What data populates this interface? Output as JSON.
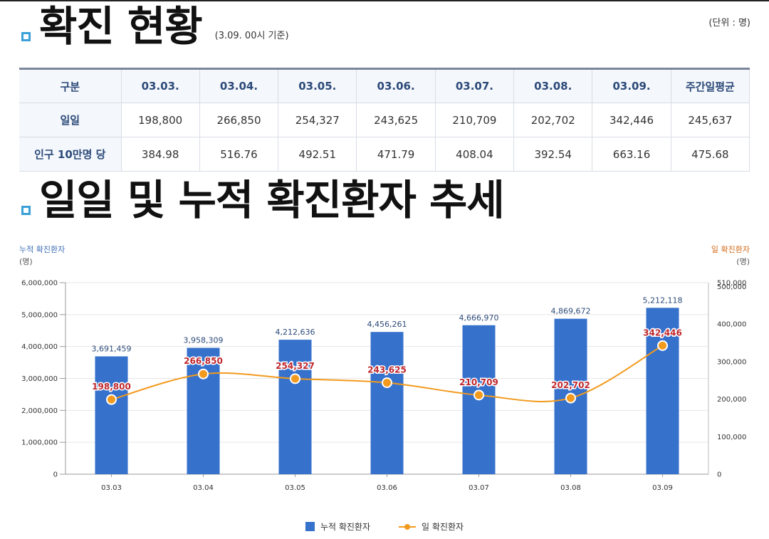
{
  "section1": {
    "title": "확진 현황",
    "subtitle": "(3.09. 00시 기준)",
    "unit": "(단위 : 명)"
  },
  "table": {
    "headers": [
      "구분",
      "03.03.",
      "03.04.",
      "03.05.",
      "03.06.",
      "03.07.",
      "03.08.",
      "03.09.",
      "주간일평균"
    ],
    "rows": [
      {
        "label": "일일",
        "cells": [
          "198,800",
          "266,850",
          "254,327",
          "243,625",
          "210,709",
          "202,702",
          "342,446",
          "245,637"
        ]
      },
      {
        "label": "인구 10만명 당",
        "cells": [
          "384.98",
          "516.76",
          "492.51",
          "471.79",
          "408.04",
          "392.54",
          "663.16",
          "475.68"
        ]
      }
    ]
  },
  "section2": {
    "title": "일일 및 누적 확진환자 추세"
  },
  "axis_titles": {
    "left": "누적 확진환자",
    "left_unit": "(명)",
    "right": "일 확진환자",
    "right_unit": "(명)"
  },
  "legend": {
    "bar": "누적 확진환자",
    "line": "일 확진환자"
  },
  "chart_data": {
    "type": "bar",
    "categories": [
      "03.03",
      "03.04",
      "03.05",
      "03.06",
      "03.07",
      "03.08",
      "03.09"
    ],
    "series": [
      {
        "name": "누적 확진환자",
        "type": "bar",
        "axis": "left",
        "color": "#3671cc",
        "values": [
          3691459,
          3958309,
          4212636,
          4456261,
          4666970,
          4869672,
          5212118
        ],
        "labels": [
          "3,691,459",
          "3,958,309",
          "4,212,636",
          "4,456,261",
          "4,666,970",
          "4,869,672",
          "5,212,118"
        ]
      },
      {
        "name": "일 확진환자",
        "type": "line",
        "axis": "right",
        "color": "#f29a1d",
        "values": [
          198800,
          266850,
          254327,
          243625,
          210709,
          202702,
          342446
        ],
        "labels": [
          "198,800",
          "266,850",
          "254,327",
          "243,625",
          "210,709",
          "202,702",
          "342,446"
        ]
      }
    ],
    "y_left": {
      "min": 0,
      "max": 6000000,
      "ticks": [
        0,
        1000000,
        2000000,
        3000000,
        4000000,
        5000000,
        6000000
      ],
      "tick_labels": [
        "0",
        "1,000,000",
        "2,000,000",
        "3,000,000",
        "4,000,000",
        "5,000,000",
        "6,000,000"
      ]
    },
    "y_right": {
      "min": 0,
      "max": 510000,
      "ticks": [
        0,
        100000,
        200000,
        300000,
        400000,
        500000,
        510000
      ],
      "tick_labels": [
        "0",
        "100,000",
        "200,000",
        "300,000",
        "400,000",
        "500,000",
        "510,000"
      ]
    },
    "grid": true,
    "legend_position": "bottom"
  }
}
